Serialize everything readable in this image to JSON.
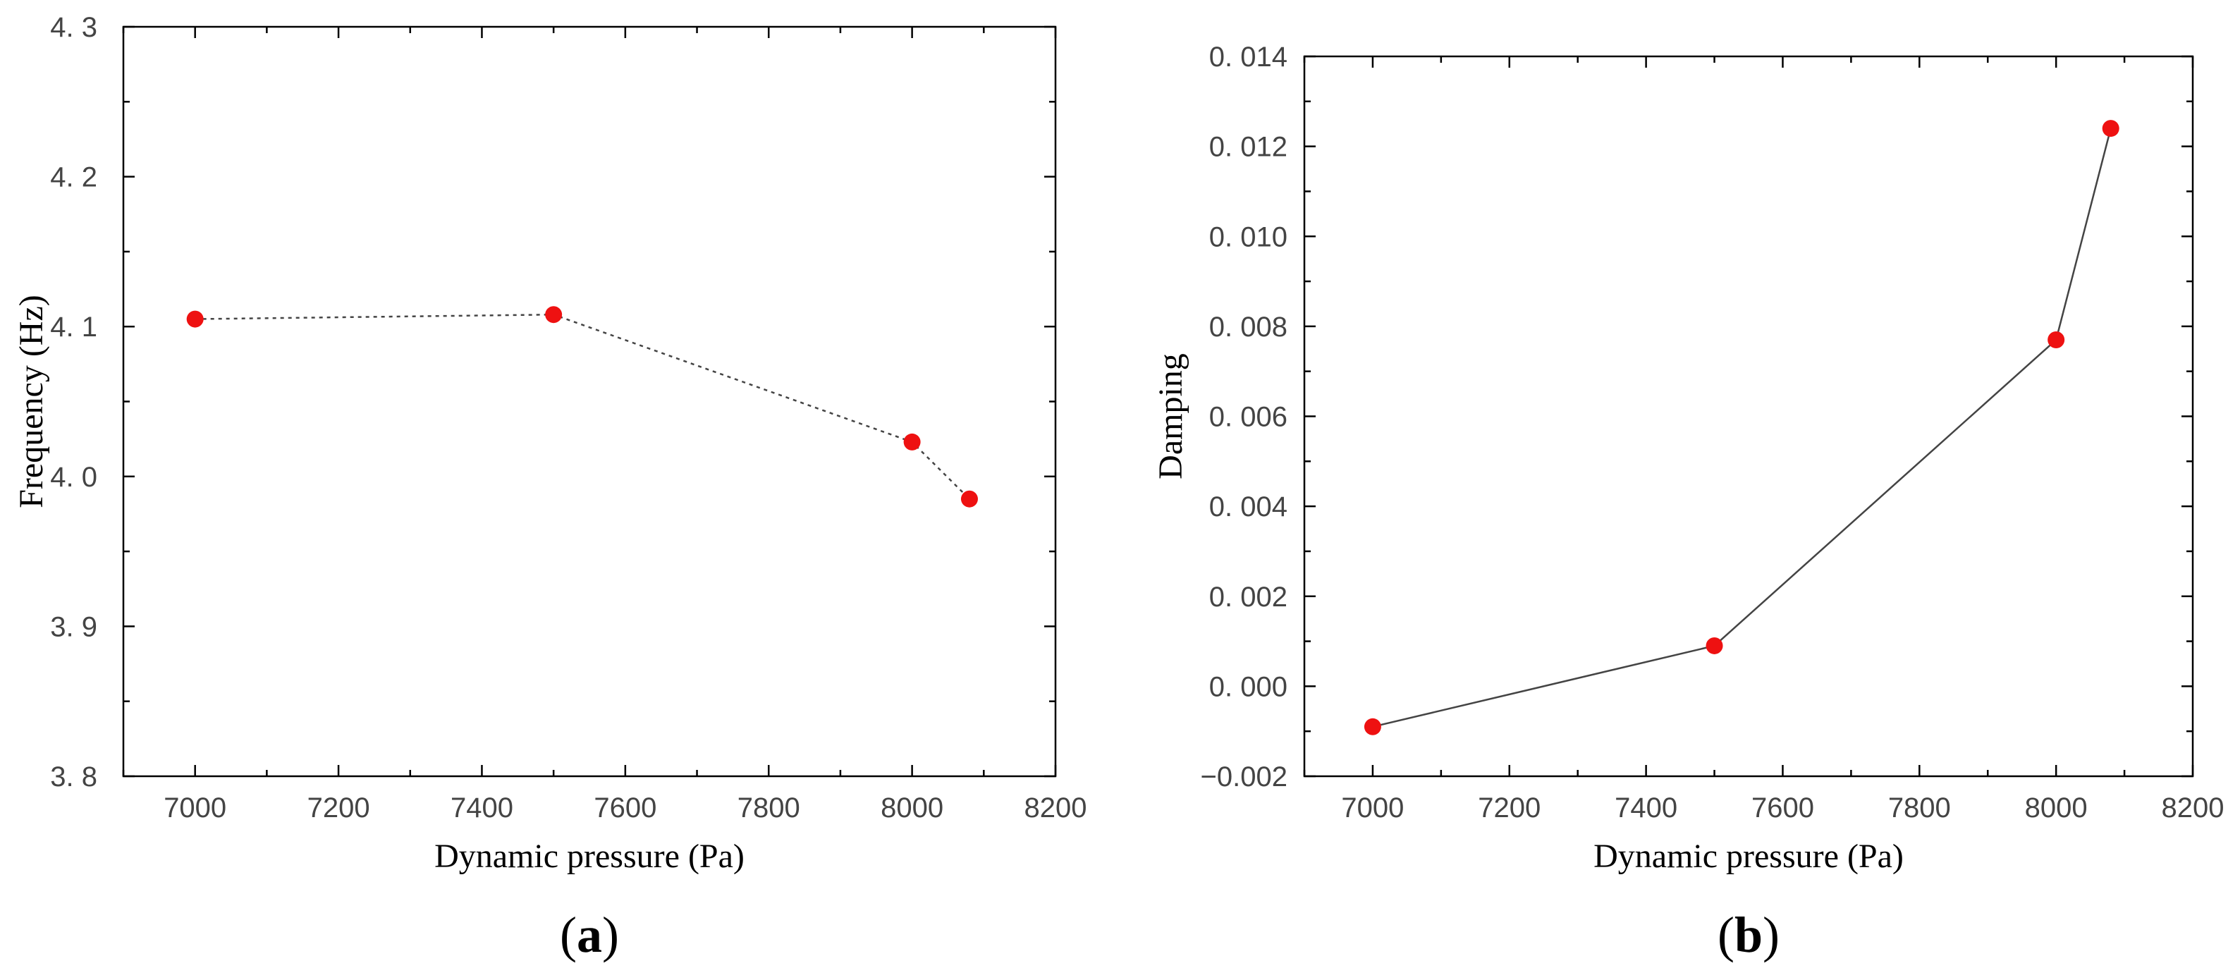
{
  "chart_data": [
    {
      "panel": "a",
      "panel_label": "a",
      "type": "line",
      "line_style": "dotted",
      "xlabel": "Dynamic pressure (Pa)",
      "ylabel": "Frequency (Hz)",
      "xlim": [
        6900,
        8200
      ],
      "ylim": [
        3.8,
        4.3
      ],
      "xticks": [
        7000,
        7200,
        7400,
        7600,
        7800,
        8000,
        8200
      ],
      "yticks": [
        3.8,
        3.9,
        4.0,
        4.1,
        4.2,
        4.3
      ],
      "xtick_labels": [
        "7000",
        "7200",
        "7400",
        "7600",
        "7800",
        "8000",
        "8200"
      ],
      "ytick_labels": [
        "3. 8",
        "3. 9",
        "4. 0",
        "4. 1",
        "4. 2",
        "4. 3"
      ],
      "series": [
        {
          "name": "Frequency",
          "x": [
            7000,
            7500,
            8000,
            8080
          ],
          "y": [
            4.105,
            4.108,
            4.023,
            3.985
          ]
        }
      ],
      "marker_color": "#ee1111",
      "line_color": "#444444"
    },
    {
      "panel": "b",
      "panel_label": "b",
      "type": "line",
      "line_style": "solid",
      "xlabel": "Dynamic pressure (Pa)",
      "ylabel": "Damping",
      "xlim": [
        6900,
        8200
      ],
      "ylim": [
        -0.002,
        0.014
      ],
      "xticks": [
        7000,
        7200,
        7400,
        7600,
        7800,
        8000,
        8200
      ],
      "yticks": [
        -0.002,
        0.0,
        0.002,
        0.004,
        0.006,
        0.008,
        0.01,
        0.012,
        0.014
      ],
      "xtick_labels": [
        "7000",
        "7200",
        "7400",
        "7600",
        "7800",
        "8000",
        "8200"
      ],
      "ytick_labels": [
        "−0.002",
        "0. 000",
        "0. 002",
        "0. 004",
        "0. 006",
        "0. 008",
        "0. 010",
        "0. 012",
        "0. 014"
      ],
      "series": [
        {
          "name": "Damping",
          "x": [
            7000,
            7500,
            8000,
            8080
          ],
          "y": [
            -0.0009,
            0.0009,
            0.0077,
            0.0124
          ]
        }
      ],
      "marker_color": "#ee1111",
      "line_color": "#444444"
    }
  ]
}
